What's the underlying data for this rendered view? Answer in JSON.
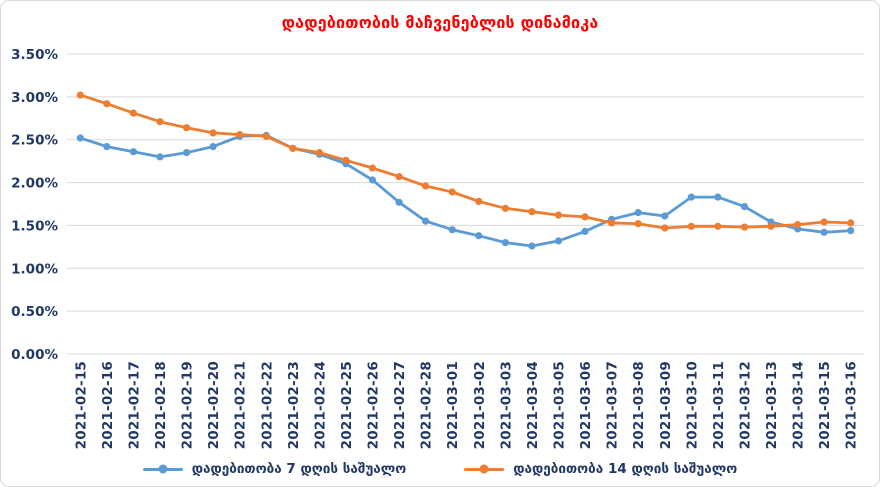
{
  "chart_data": {
    "type": "line",
    "title": "დადებითობის მაჩვენებლის დინამიკა",
    "categories": [
      "2021-02-15",
      "2021-02-16",
      "2021-02-17",
      "2021-02-18",
      "2021-02-19",
      "2021-02-20",
      "2021-02-21",
      "2021-02-22",
      "2021-02-23",
      "2021-02-24",
      "2021-02-25",
      "2021-02-26",
      "2021-02-27",
      "2021-02-28",
      "2021-03-01",
      "2021-03-02",
      "2021-03-03",
      "2021-03-04",
      "2021-03-05",
      "2021-03-06",
      "2021-03-07",
      "2021-03-08",
      "2021-03-09",
      "2021-03-10",
      "2021-03-11",
      "2021-03-12",
      "2021-03-13",
      "2021-03-14",
      "2021-03-15",
      "2021-03-16"
    ],
    "series": [
      {
        "name": "დადებითობა 7 დღის საშუალო",
        "color": "#5B9BD5",
        "values": [
          2.52,
          2.42,
          2.36,
          2.3,
          2.35,
          2.42,
          2.54,
          2.55,
          2.4,
          2.33,
          2.22,
          2.03,
          1.77,
          1.55,
          1.45,
          1.38,
          1.3,
          1.26,
          1.32,
          1.43,
          1.57,
          1.65,
          1.61,
          1.83,
          1.83,
          1.72,
          1.54,
          1.46,
          1.42,
          1.44
        ]
      },
      {
        "name": "დადებითობა 14 დღის საშუალო",
        "color": "#ED7D31",
        "values": [
          3.02,
          2.92,
          2.81,
          2.71,
          2.64,
          2.58,
          2.56,
          2.54,
          2.4,
          2.35,
          2.26,
          2.17,
          2.07,
          1.96,
          1.89,
          1.78,
          1.7,
          1.66,
          1.62,
          1.6,
          1.53,
          1.52,
          1.47,
          1.49,
          1.49,
          1.48,
          1.49,
          1.51,
          1.54,
          1.53
        ]
      }
    ],
    "y_axis": {
      "min": 0,
      "max": 3.5,
      "step": 0.5,
      "tick_labels": [
        "0.00%",
        "0.50%",
        "1.00%",
        "1.50%",
        "2.00%",
        "2.50%",
        "3.00%",
        "3.50%"
      ]
    },
    "grid": true,
    "legend_position": "bottom",
    "colors": {
      "title": "#FF0000",
      "axis_text": "#1F3864",
      "gridline": "#D9D9D9"
    }
  }
}
